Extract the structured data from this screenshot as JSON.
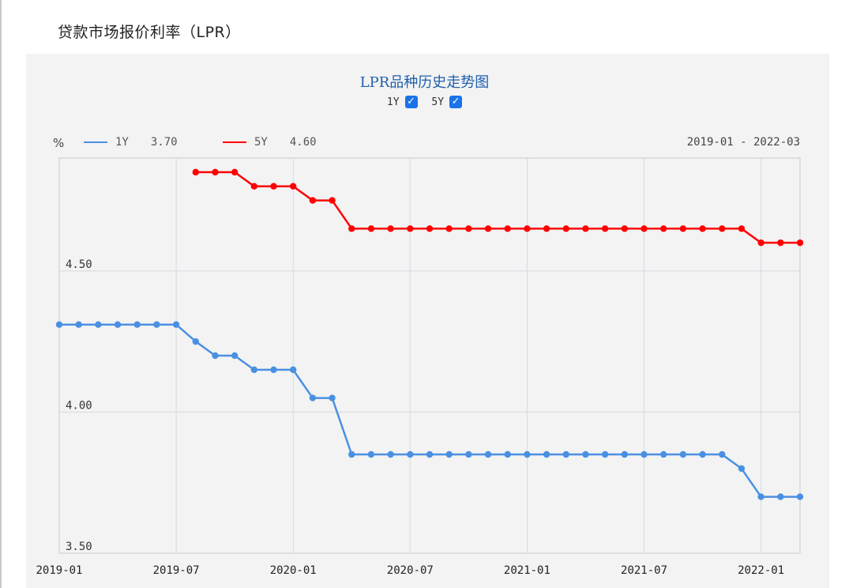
{
  "page": {
    "title": "贷款市场报价利率（LPR）"
  },
  "chart_title": "LPR品种历史走势图",
  "toggles": [
    {
      "label": "1Y",
      "checked": true
    },
    {
      "label": "5Y",
      "checked": true
    }
  ],
  "legend": {
    "unit": "%",
    "items": [
      {
        "name": "1Y",
        "latest": "3.70",
        "color": "#4a90e2"
      },
      {
        "name": "5Y",
        "latest": "4.60",
        "color": "#ff0000"
      }
    ],
    "range": "2019-01 - 2022-03"
  },
  "chart_data": {
    "type": "line",
    "ylim": [
      3.5,
      4.9
    ],
    "y_ticks": [
      "4.50",
      "4.00",
      "3.50"
    ],
    "x_ticks": [
      "2019-01",
      "2019-07",
      "2020-01",
      "2020-07",
      "2021-01",
      "2021-07",
      "2022-01"
    ],
    "x_range": [
      "2019-01",
      "2022-03"
    ],
    "grid": true,
    "series": [
      {
        "name": "1Y",
        "color": "#4a90e2",
        "points": [
          [
            "2019-01",
            4.31
          ],
          [
            "2019-02",
            4.31
          ],
          [
            "2019-03",
            4.31
          ],
          [
            "2019-04",
            4.31
          ],
          [
            "2019-05",
            4.31
          ],
          [
            "2019-06",
            4.31
          ],
          [
            "2019-07",
            4.31
          ],
          [
            "2019-08",
            4.25
          ],
          [
            "2019-09",
            4.2
          ],
          [
            "2019-10",
            4.2
          ],
          [
            "2019-11",
            4.15
          ],
          [
            "2019-12",
            4.15
          ],
          [
            "2020-01",
            4.15
          ],
          [
            "2020-02",
            4.05
          ],
          [
            "2020-03",
            4.05
          ],
          [
            "2020-04",
            3.85
          ],
          [
            "2020-05",
            3.85
          ],
          [
            "2020-06",
            3.85
          ],
          [
            "2020-07",
            3.85
          ],
          [
            "2020-08",
            3.85
          ],
          [
            "2020-09",
            3.85
          ],
          [
            "2020-10",
            3.85
          ],
          [
            "2020-11",
            3.85
          ],
          [
            "2020-12",
            3.85
          ],
          [
            "2021-01",
            3.85
          ],
          [
            "2021-02",
            3.85
          ],
          [
            "2021-03",
            3.85
          ],
          [
            "2021-04",
            3.85
          ],
          [
            "2021-05",
            3.85
          ],
          [
            "2021-06",
            3.85
          ],
          [
            "2021-07",
            3.85
          ],
          [
            "2021-08",
            3.85
          ],
          [
            "2021-09",
            3.85
          ],
          [
            "2021-10",
            3.85
          ],
          [
            "2021-11",
            3.85
          ],
          [
            "2021-12",
            3.8
          ],
          [
            "2022-01",
            3.7
          ],
          [
            "2022-02",
            3.7
          ],
          [
            "2022-03",
            3.7
          ]
        ]
      },
      {
        "name": "5Y",
        "color": "#ff0000",
        "points": [
          [
            "2019-08",
            4.85
          ],
          [
            "2019-09",
            4.85
          ],
          [
            "2019-10",
            4.85
          ],
          [
            "2019-11",
            4.8
          ],
          [
            "2019-12",
            4.8
          ],
          [
            "2020-01",
            4.8
          ],
          [
            "2020-02",
            4.75
          ],
          [
            "2020-03",
            4.75
          ],
          [
            "2020-04",
            4.65
          ],
          [
            "2020-05",
            4.65
          ],
          [
            "2020-06",
            4.65
          ],
          [
            "2020-07",
            4.65
          ],
          [
            "2020-08",
            4.65
          ],
          [
            "2020-09",
            4.65
          ],
          [
            "2020-10",
            4.65
          ],
          [
            "2020-11",
            4.65
          ],
          [
            "2020-12",
            4.65
          ],
          [
            "2021-01",
            4.65
          ],
          [
            "2021-02",
            4.65
          ],
          [
            "2021-03",
            4.65
          ],
          [
            "2021-04",
            4.65
          ],
          [
            "2021-05",
            4.65
          ],
          [
            "2021-06",
            4.65
          ],
          [
            "2021-07",
            4.65
          ],
          [
            "2021-08",
            4.65
          ],
          [
            "2021-09",
            4.65
          ],
          [
            "2021-10",
            4.65
          ],
          [
            "2021-11",
            4.65
          ],
          [
            "2021-12",
            4.65
          ],
          [
            "2022-01",
            4.6
          ],
          [
            "2022-02",
            4.6
          ],
          [
            "2022-03",
            4.6
          ]
        ]
      }
    ]
  }
}
